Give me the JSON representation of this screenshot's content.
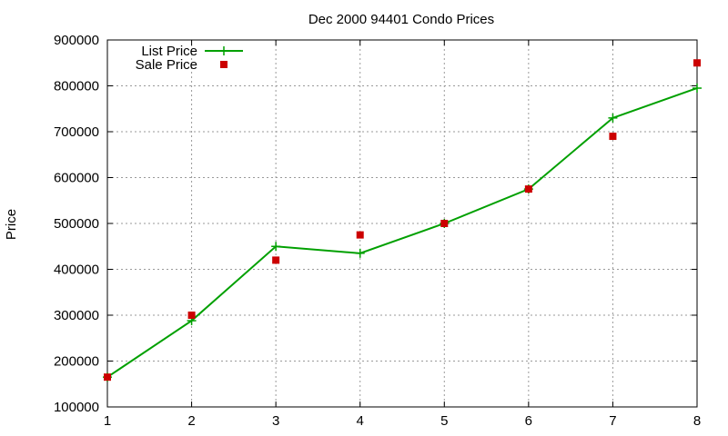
{
  "chart_data": {
    "type": "line",
    "title": "Dec 2000 94401 Condo Prices",
    "xlabel": "",
    "ylabel": "Price",
    "xlim": [
      1,
      8
    ],
    "ylim": [
      100000,
      900000
    ],
    "x_ticks": [
      "1",
      "2",
      "3",
      "4",
      "5",
      "6",
      "7",
      "8"
    ],
    "y_ticks": [
      "100000",
      "200000",
      "300000",
      "400000",
      "500000",
      "600000",
      "700000",
      "800000",
      "900000"
    ],
    "grid": true,
    "legend_position": "top-left",
    "series": [
      {
        "name": "List Price",
        "style": "line-with-plus-markers",
        "color": "#00a000",
        "x": [
          1,
          2,
          3,
          4,
          5,
          6,
          7,
          8
        ],
        "values": [
          165000,
          288000,
          450000,
          435000,
          500000,
          575000,
          730000,
          795000
        ]
      },
      {
        "name": "Sale Price",
        "style": "square-markers",
        "color": "#cc0000",
        "x": [
          1,
          2,
          3,
          4,
          5,
          6,
          7,
          8
        ],
        "values": [
          165000,
          300000,
          420000,
          475000,
          500000,
          575000,
          690000,
          850000
        ]
      }
    ]
  }
}
